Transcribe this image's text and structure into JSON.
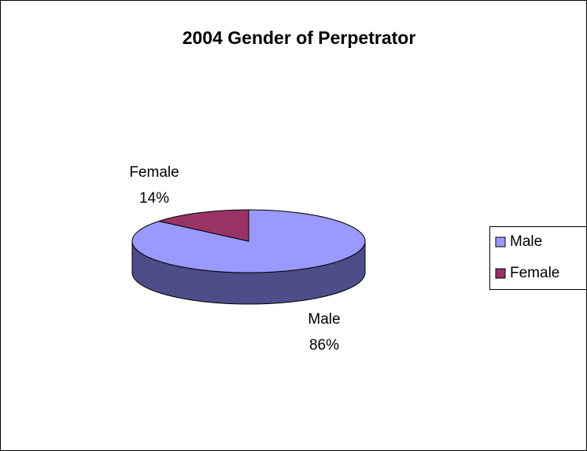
{
  "chart_data": {
    "type": "pie",
    "title": "2004 Gender of Perpetrator",
    "categories": [
      "Male",
      "Female"
    ],
    "values": [
      86,
      14
    ],
    "value_labels": [
      "86%",
      "14%"
    ],
    "colors": [
      "#9999ff",
      "#993366"
    ],
    "side_colors": [
      "#4d4d8a",
      "#5c1f3d"
    ],
    "legend": "right"
  }
}
